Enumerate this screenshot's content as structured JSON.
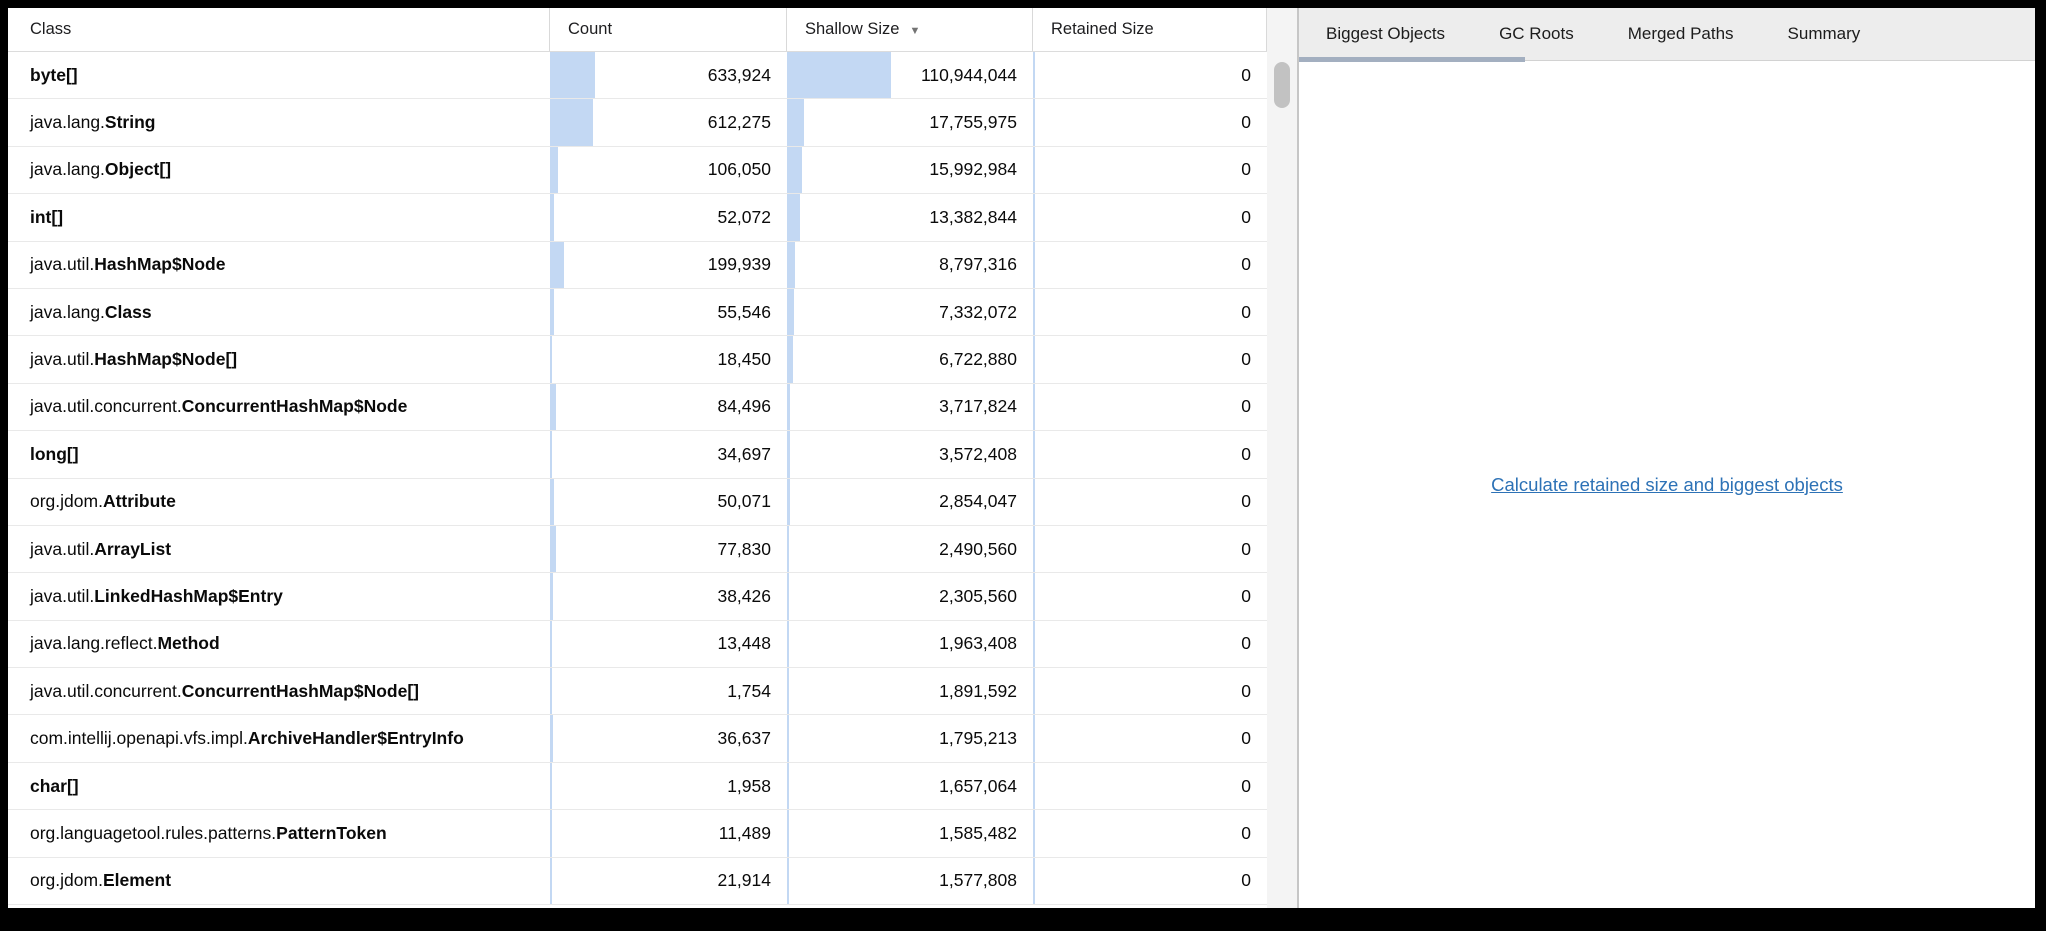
{
  "table": {
    "columns": [
      {
        "label": "Class"
      },
      {
        "label": "Count"
      },
      {
        "label": "Shallow Size",
        "sort": "desc",
        "sort_indicator": "▼"
      },
      {
        "label": "Retained Size"
      }
    ],
    "rows": [
      {
        "package": "",
        "class": "byte[]",
        "count": "633,924",
        "shallow": "110,944,044",
        "retained": "0"
      },
      {
        "package": "java.lang.",
        "class": "String",
        "count": "612,275",
        "shallow": "17,755,975",
        "retained": "0"
      },
      {
        "package": "java.lang.",
        "class": "Object[]",
        "count": "106,050",
        "shallow": "15,992,984",
        "retained": "0"
      },
      {
        "package": "",
        "class": "int[]",
        "count": "52,072",
        "shallow": "13,382,844",
        "retained": "0"
      },
      {
        "package": "java.util.",
        "class": "HashMap$Node",
        "count": "199,939",
        "shallow": "8,797,316",
        "retained": "0"
      },
      {
        "package": "java.lang.",
        "class": "Class",
        "count": "55,546",
        "shallow": "7,332,072",
        "retained": "0"
      },
      {
        "package": "java.util.",
        "class": "HashMap$Node[]",
        "count": "18,450",
        "shallow": "6,722,880",
        "retained": "0"
      },
      {
        "package": "java.util.concurrent.",
        "class": "ConcurrentHashMap$Node",
        "count": "84,496",
        "shallow": "3,717,824",
        "retained": "0"
      },
      {
        "package": "",
        "class": "long[]",
        "count": "34,697",
        "shallow": "3,572,408",
        "retained": "0"
      },
      {
        "package": "org.jdom.",
        "class": "Attribute",
        "count": "50,071",
        "shallow": "2,854,047",
        "retained": "0"
      },
      {
        "package": "java.util.",
        "class": "ArrayList",
        "count": "77,830",
        "shallow": "2,490,560",
        "retained": "0"
      },
      {
        "package": "java.util.",
        "class": "LinkedHashMap$Entry",
        "count": "38,426",
        "shallow": "2,305,560",
        "retained": "0"
      },
      {
        "package": "java.lang.reflect.",
        "class": "Method",
        "count": "13,448",
        "shallow": "1,963,408",
        "retained": "0"
      },
      {
        "package": "java.util.concurrent.",
        "class": "ConcurrentHashMap$Node[]",
        "count": "1,754",
        "shallow": "1,891,592",
        "retained": "0"
      },
      {
        "package": "com.intellij.openapi.vfs.impl.",
        "class": "ArchiveHandler$EntryInfo",
        "count": "36,637",
        "shallow": "1,795,213",
        "retained": "0"
      },
      {
        "package": "",
        "class": "char[]",
        "count": "1,958",
        "shallow": "1,657,064",
        "retained": "0"
      },
      {
        "package": "org.languagetool.rules.patterns.",
        "class": "PatternToken",
        "count": "11,489",
        "shallow": "1,585,482",
        "retained": "0"
      },
      {
        "package": "org.jdom.",
        "class": "Element",
        "count": "21,914",
        "shallow": "1,577,808",
        "retained": "0"
      }
    ]
  },
  "tabs": [
    {
      "label": "Biggest Objects",
      "active": true
    },
    {
      "label": "GC Roots",
      "active": false
    },
    {
      "label": "Merged Paths",
      "active": false
    },
    {
      "label": "Summary",
      "active": false
    }
  ],
  "right_panel": {
    "link_label": "Calculate retained size and biggest objects"
  },
  "colors": {
    "bar_fill": "#c3d8f3",
    "link": "#2d72b6",
    "active_tab_underline": "#a3afc0",
    "tabbar_background": "#ededed"
  }
}
